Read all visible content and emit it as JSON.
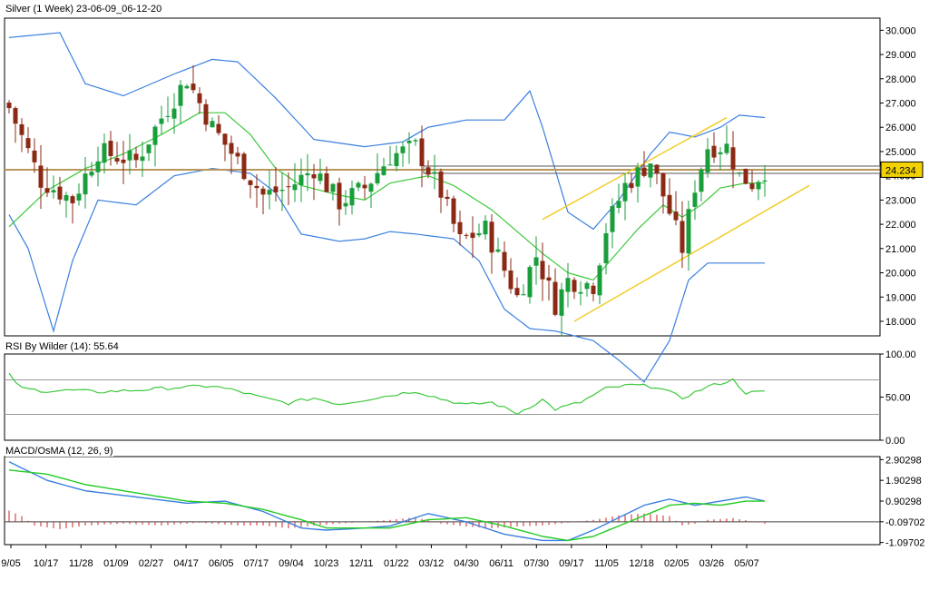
{
  "panels": {
    "price_title": "Silver (1 Week) 23-06-09_06-12-20",
    "rsi_title": "RSI By Wilder (14): 55.64",
    "macd_title": "MACD/OsMA (12, 26, 9)",
    "last_price_label": "24.234"
  },
  "colors": {
    "up_candle": "#1a9e3c",
    "down_candle": "#8b2a14",
    "bollinger_band": "#3a7fe0",
    "bollinger_mid": "#3cc83c",
    "channel": "#f2cc26",
    "level_line": "#b8955a",
    "rsi_line": "#3cc83c",
    "macd_line": "#3a7fe0",
    "signal_line": "#22cc22",
    "osma_bar": "#d02020"
  },
  "chart_data": [
    {
      "type": "candlestick",
      "title": "Silver (1 Week) 23-06-09_06-12-20",
      "x_tick_labels": [
        "9/05",
        "10/17",
        "11/28",
        "01/09",
        "02/27",
        "04/17",
        "06/05",
        "07/17",
        "09/04",
        "10/23",
        "12/11",
        "01/22",
        "03/12",
        "04/30",
        "06/11",
        "07/30",
        "09/17",
        "11/05",
        "12/18",
        "02/05",
        "03/26",
        "05/07"
      ],
      "y_tick_labels": [
        "30.000",
        "29.000",
        "28.000",
        "27.000",
        "26.000",
        "25.000",
        "24.000",
        "23.000",
        "22.000",
        "21.000",
        "20.000",
        "19.000",
        "18.000"
      ],
      "ylim": [
        17.4,
        30.5
      ],
      "last_value": 24.234,
      "horizontal_level": 24.25,
      "close_anchors": [
        [
          0,
          26.8
        ],
        [
          5,
          23.8
        ],
        [
          10,
          23.0
        ],
        [
          14,
          25.0
        ],
        [
          20,
          24.6
        ],
        [
          24,
          26.4
        ],
        [
          28,
          28.0
        ],
        [
          32,
          26.0
        ],
        [
          36,
          24.6
        ],
        [
          40,
          23.2
        ],
        [
          44,
          23.5
        ],
        [
          48,
          24.3
        ],
        [
          52,
          22.9
        ],
        [
          56,
          23.5
        ],
        [
          60,
          24.8
        ],
        [
          64,
          25.2
        ],
        [
          68,
          23.3
        ],
        [
          71,
          21.3
        ],
        [
          75,
          21.8
        ],
        [
          80,
          19.0
        ],
        [
          83,
          20.7
        ],
        [
          86,
          18.7
        ],
        [
          88,
          19.7
        ],
        [
          92,
          19.5
        ],
        [
          94,
          21.8
        ],
        [
          97,
          23.6
        ],
        [
          99,
          24.1
        ],
        [
          101,
          24.6
        ],
        [
          104,
          22.5
        ],
        [
          106,
          21.0
        ],
        [
          108,
          23.6
        ],
        [
          110,
          25.2
        ],
        [
          113,
          25.2
        ],
        [
          115,
          24.0
        ],
        [
          117,
          23.7
        ],
        [
          119,
          24.23
        ]
      ],
      "bollinger_upper_anchors": [
        [
          0,
          29.7
        ],
        [
          8,
          29.9
        ],
        [
          12,
          27.8
        ],
        [
          18,
          27.3
        ],
        [
          26,
          28.2
        ],
        [
          32,
          28.8
        ],
        [
          36,
          28.7
        ],
        [
          42,
          27.2
        ],
        [
          48,
          25.5
        ],
        [
          56,
          25.2
        ],
        [
          62,
          25.4
        ],
        [
          66,
          26.0
        ],
        [
          72,
          26.3
        ],
        [
          78,
          26.3
        ],
        [
          82,
          27.5
        ],
        [
          84,
          26.0
        ],
        [
          88,
          22.5
        ],
        [
          92,
          21.8
        ],
        [
          96,
          23.0
        ],
        [
          101,
          24.9
        ],
        [
          104,
          25.8
        ],
        [
          108,
          25.6
        ],
        [
          112,
          26.0
        ],
        [
          115,
          26.5
        ],
        [
          119,
          26.4
        ]
      ],
      "bollinger_mid_anchors": [
        [
          0,
          21.9
        ],
        [
          6,
          23.4
        ],
        [
          12,
          24.3
        ],
        [
          18,
          24.9
        ],
        [
          24,
          25.7
        ],
        [
          30,
          26.6
        ],
        [
          34,
          26.6
        ],
        [
          38,
          25.7
        ],
        [
          42,
          24.3
        ],
        [
          46,
          23.6
        ],
        [
          52,
          23.2
        ],
        [
          56,
          23.0
        ],
        [
          60,
          23.7
        ],
        [
          66,
          24.0
        ],
        [
          70,
          23.6
        ],
        [
          76,
          22.6
        ],
        [
          80,
          21.7
        ],
        [
          84,
          20.8
        ],
        [
          88,
          20.0
        ],
        [
          92,
          19.7
        ],
        [
          95,
          20.6
        ],
        [
          99,
          21.8
        ],
        [
          103,
          22.8
        ],
        [
          106,
          22.3
        ],
        [
          109,
          22.8
        ],
        [
          112,
          23.5
        ],
        [
          116,
          23.7
        ],
        [
          119,
          23.7
        ]
      ],
      "bollinger_lower_anchors": [
        [
          0,
          22.4
        ],
        [
          3,
          21.0
        ],
        [
          7,
          17.6
        ],
        [
          10,
          20.5
        ],
        [
          14,
          23.0
        ],
        [
          20,
          22.8
        ],
        [
          26,
          24.0
        ],
        [
          32,
          24.3
        ],
        [
          38,
          24.1
        ],
        [
          42,
          23.3
        ],
        [
          46,
          21.6
        ],
        [
          52,
          21.3
        ],
        [
          56,
          21.4
        ],
        [
          60,
          21.7
        ],
        [
          64,
          21.6
        ],
        [
          70,
          21.4
        ],
        [
          74,
          20.5
        ],
        [
          78,
          18.5
        ],
        [
          82,
          17.7
        ],
        [
          86,
          17.6
        ],
        [
          92,
          17.2
        ],
        [
          96,
          16.4
        ],
        [
          100,
          15.5
        ],
        [
          104,
          17.2
        ],
        [
          107,
          19.7
        ],
        [
          110,
          20.4
        ],
        [
          114,
          20.4
        ],
        [
          119,
          20.4
        ]
      ],
      "channel_lines": [
        {
          "x0": 84,
          "y0": 22.2,
          "x1": 113,
          "y1": 26.4
        },
        {
          "x0": 89,
          "y0": 18.0,
          "x1": 126,
          "y1": 23.6
        }
      ]
    },
    {
      "type": "line",
      "title": "RSI By Wilder (14): 55.64",
      "y_tick_labels": [
        "100.00",
        "50.00",
        "0.00"
      ],
      "ylim": [
        0,
        100
      ],
      "reference_levels": [
        70,
        30
      ],
      "series": [
        {
          "anchors": [
            [
              0,
              76
            ],
            [
              2,
              60
            ],
            [
              6,
              57
            ],
            [
              10,
              58
            ],
            [
              14,
              56
            ],
            [
              20,
              58
            ],
            [
              26,
              61
            ],
            [
              32,
              63
            ],
            [
              36,
              57
            ],
            [
              40,
              49
            ],
            [
              44,
              43
            ],
            [
              48,
              49
            ],
            [
              52,
              42
            ],
            [
              56,
              47
            ],
            [
              60,
              52
            ],
            [
              64,
              57
            ],
            [
              68,
              48
            ],
            [
              72,
              41
            ],
            [
              76,
              44
            ],
            [
              80,
              31
            ],
            [
              84,
              47
            ],
            [
              86,
              36
            ],
            [
              90,
              44
            ],
            [
              94,
              60
            ],
            [
              98,
              64
            ],
            [
              102,
              62
            ],
            [
              106,
              49
            ],
            [
              110,
              62
            ],
            [
              114,
              70
            ],
            [
              116,
              55
            ],
            [
              119,
              56
            ]
          ]
        }
      ]
    },
    {
      "type": "line",
      "title": "MACD/OsMA (12, 26, 9)",
      "y_tick_labels": [
        "2.90298",
        "1.90298",
        "0.90298",
        "-0.09702",
        "-1.09702"
      ],
      "ylim": [
        -1.2,
        3.05
      ],
      "zero_level": -0.09702,
      "series": [
        {
          "name": "macd",
          "anchors": [
            [
              0,
              2.8
            ],
            [
              6,
              1.9
            ],
            [
              12,
              1.4
            ],
            [
              20,
              1.1
            ],
            [
              28,
              0.8
            ],
            [
              34,
              0.9
            ],
            [
              40,
              0.4
            ],
            [
              46,
              -0.4
            ],
            [
              50,
              -0.5
            ],
            [
              56,
              -0.4
            ],
            [
              60,
              -0.3
            ],
            [
              66,
              0.3
            ],
            [
              72,
              -0.1
            ],
            [
              78,
              -0.7
            ],
            [
              84,
              -1.0
            ],
            [
              88,
              -1.0
            ],
            [
              92,
              -0.5
            ],
            [
              100,
              0.7
            ],
            [
              104,
              1.0
            ],
            [
              108,
              0.7
            ],
            [
              112,
              0.9
            ],
            [
              116,
              1.1
            ],
            [
              119,
              0.9
            ]
          ]
        },
        {
          "name": "signal",
          "anchors": [
            [
              0,
              2.4
            ],
            [
              6,
              2.2
            ],
            [
              12,
              1.7
            ],
            [
              20,
              1.3
            ],
            [
              28,
              0.9
            ],
            [
              34,
              0.8
            ],
            [
              40,
              0.5
            ],
            [
              46,
              0.0
            ],
            [
              50,
              -0.4
            ],
            [
              56,
              -0.4
            ],
            [
              60,
              -0.4
            ],
            [
              66,
              0.0
            ],
            [
              72,
              0.1
            ],
            [
              78,
              -0.3
            ],
            [
              84,
              -0.8
            ],
            [
              88,
              -1.0
            ],
            [
              92,
              -0.8
            ],
            [
              100,
              0.2
            ],
            [
              104,
              0.7
            ],
            [
              108,
              0.8
            ],
            [
              112,
              0.7
            ],
            [
              116,
              0.9
            ],
            [
              119,
              0.9
            ]
          ]
        }
      ],
      "osma_anchors": [
        [
          0,
          0.6
        ],
        [
          2,
          0.3
        ],
        [
          4,
          -0.2
        ],
        [
          8,
          -0.4
        ],
        [
          12,
          -0.2
        ],
        [
          18,
          -0.1
        ],
        [
          24,
          -0.2
        ],
        [
          30,
          -0.05
        ],
        [
          36,
          -0.2
        ],
        [
          40,
          -0.2
        ],
        [
          44,
          -0.35
        ],
        [
          48,
          -0.2
        ],
        [
          52,
          -0.1
        ],
        [
          56,
          0.0
        ],
        [
          60,
          0.1
        ],
        [
          64,
          0.25
        ],
        [
          68,
          -0.1
        ],
        [
          72,
          -0.25
        ],
        [
          76,
          -0.35
        ],
        [
          80,
          -0.25
        ],
        [
          84,
          -0.2
        ],
        [
          88,
          -0.05
        ],
        [
          92,
          0.1
        ],
        [
          96,
          0.35
        ],
        [
          100,
          0.45
        ],
        [
          104,
          0.3
        ],
        [
          106,
          -0.2
        ],
        [
          108,
          -0.1
        ],
        [
          110,
          0.1
        ],
        [
          114,
          0.2
        ],
        [
          119,
          -0.1
        ]
      ]
    }
  ]
}
